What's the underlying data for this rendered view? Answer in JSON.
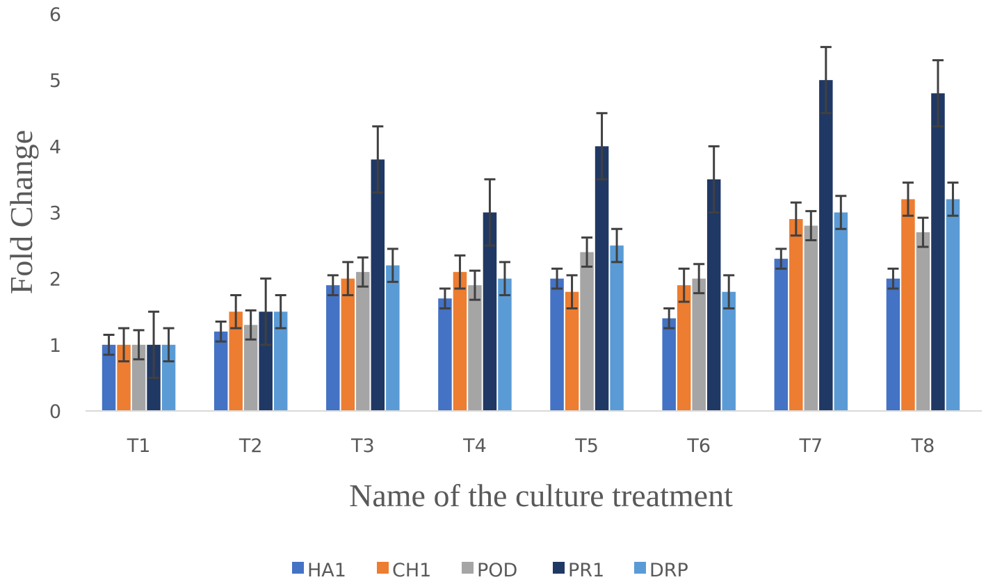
{
  "chart_data": {
    "type": "bar",
    "title": "",
    "xlabel": "Name of the culture treatment",
    "ylabel": "Fold Change",
    "ylim": [
      0,
      6
    ],
    "yticks": [
      "0",
      "1",
      "2",
      "3",
      "4",
      "5",
      "6"
    ],
    "grid": false,
    "legend_position": "bottom",
    "categories": [
      "T1",
      "T2",
      "T3",
      "T4",
      "T5",
      "T6",
      "T7",
      "T8"
    ],
    "series": [
      {
        "name": "HA1",
        "color": "#4472c4",
        "values": [
          1.0,
          1.2,
          1.9,
          1.7,
          2.0,
          1.4,
          2.3,
          2.0
        ],
        "errors": [
          0.15,
          0.15,
          0.15,
          0.15,
          0.15,
          0.15,
          0.15,
          0.15
        ]
      },
      {
        "name": "CH1",
        "color": "#ed7d31",
        "values": [
          1.0,
          1.5,
          2.0,
          2.1,
          1.8,
          1.9,
          2.9,
          3.2
        ],
        "errors": [
          0.25,
          0.25,
          0.25,
          0.25,
          0.25,
          0.25,
          0.25,
          0.25
        ]
      },
      {
        "name": "POD",
        "color": "#a5a5a5",
        "values": [
          1.0,
          1.3,
          2.1,
          1.9,
          2.4,
          2.0,
          2.8,
          2.7
        ],
        "errors": [
          0.22,
          0.22,
          0.22,
          0.22,
          0.22,
          0.22,
          0.22,
          0.22
        ]
      },
      {
        "name": "PR1",
        "color": "#203864",
        "values": [
          1.0,
          1.5,
          3.8,
          3.0,
          4.0,
          3.5,
          5.0,
          4.8
        ],
        "errors": [
          0.5,
          0.5,
          0.5,
          0.5,
          0.5,
          0.5,
          0.5,
          0.5
        ]
      },
      {
        "name": "DRP",
        "color": "#5b9bd5",
        "values": [
          1.0,
          1.5,
          2.2,
          2.0,
          2.5,
          1.8,
          3.0,
          3.2
        ],
        "errors": [
          0.25,
          0.25,
          0.25,
          0.25,
          0.25,
          0.25,
          0.25,
          0.25
        ]
      }
    ],
    "colors": {
      "axis": "#d9d9d9",
      "error_bar": "#404040",
      "text": "#595959"
    }
  }
}
